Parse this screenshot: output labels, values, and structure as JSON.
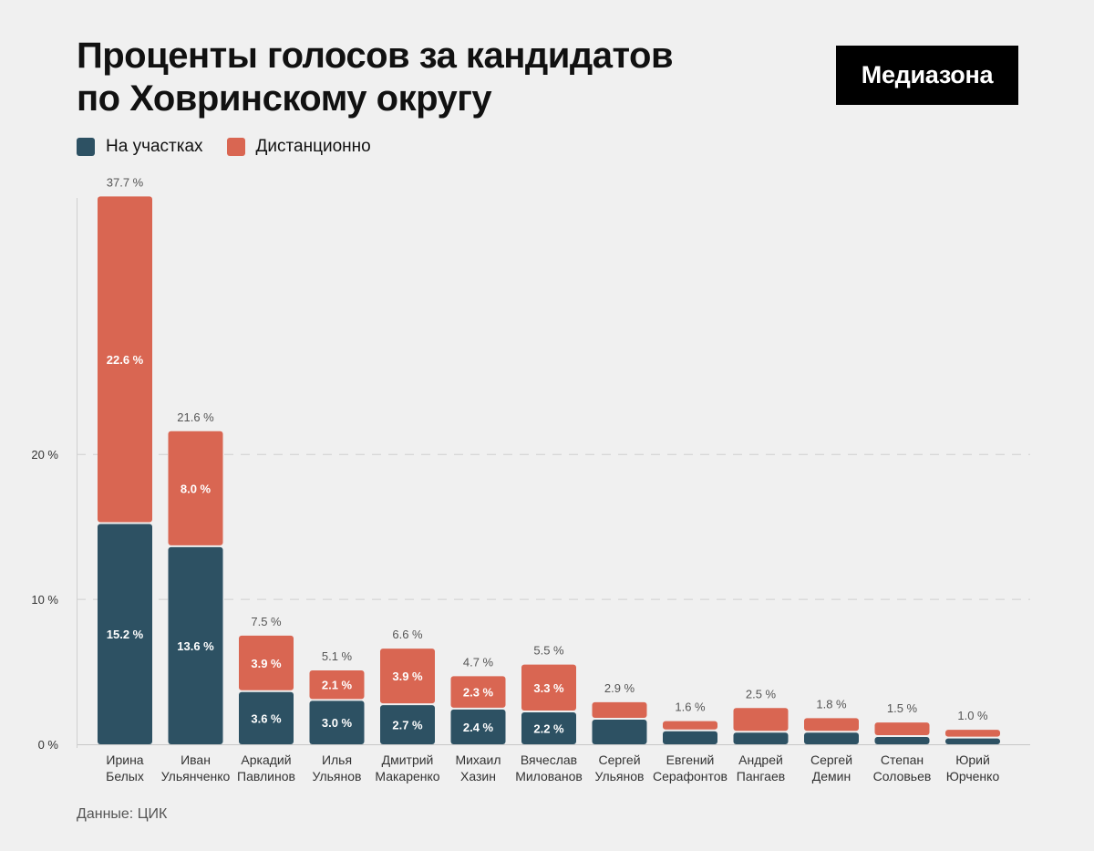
{
  "title": {
    "line1": "Проценты голосов за кандидатов",
    "line2": "по Ховринскому округу"
  },
  "logo": "Медиазона",
  "legend": {
    "items": [
      {
        "label": "На участках",
        "color": "#2d5163"
      },
      {
        "label": "Дистанционно",
        "color": "#d96652"
      }
    ]
  },
  "source": "Данные: ЦИК",
  "chart_data": {
    "type": "bar",
    "stacked": true,
    "title": "Проценты голосов за кандидатов по Ховринскому округу",
    "ylim": [
      0,
      37.7
    ],
    "yticks": [
      {
        "value": 0,
        "label": "0 %"
      },
      {
        "value": 10,
        "label": "10 %"
      },
      {
        "value": 20,
        "label": "20 %"
      }
    ],
    "categories": [
      [
        "Ирина",
        "Белых"
      ],
      [
        "Иван",
        "Ульянченко"
      ],
      [
        "Аркадий",
        "Павлинов"
      ],
      [
        "Илья",
        "Ульянов"
      ],
      [
        "Дмитрий",
        "Макаренко"
      ],
      [
        "Михаил",
        "Хазин"
      ],
      [
        "Вячеслав",
        "Милованов"
      ],
      [
        "Сергей",
        "Ульянов"
      ],
      [
        "Евгений",
        "Серафонтов"
      ],
      [
        "Андрей",
        "Пангаев"
      ],
      [
        "Сергей",
        "Демин"
      ],
      [
        "Степан",
        "Соловьев"
      ],
      [
        "Юрий",
        "Юрченко"
      ]
    ],
    "series": [
      {
        "name": "На участках",
        "color": "#2d5163",
        "values": [
          15.2,
          13.6,
          3.6,
          3.0,
          2.7,
          2.4,
          2.2,
          1.7,
          0.9,
          0.8,
          0.8,
          0.5,
          0.4
        ],
        "labels": [
          "15.2 %",
          "13.6 %",
          "3.6 %",
          "3.0 %",
          "2.7 %",
          "2.4 %",
          "2.2 %",
          null,
          null,
          null,
          null,
          null,
          null
        ]
      },
      {
        "name": "Дистанционно",
        "color": "#d96652",
        "values": [
          22.6,
          8.0,
          3.9,
          2.1,
          3.9,
          2.3,
          3.3,
          1.2,
          0.7,
          1.7,
          1.0,
          1.0,
          0.6
        ],
        "labels": [
          "22.6 %",
          "8.0 %",
          "3.9 %",
          "2.1 %",
          "3.9 %",
          "2.3 %",
          "3.3 %",
          null,
          null,
          null,
          null,
          null,
          null
        ]
      }
    ],
    "totals": [
      37.7,
      21.6,
      7.5,
      5.1,
      6.6,
      4.7,
      5.5,
      2.9,
      1.6,
      2.5,
      1.8,
      1.5,
      1.0
    ],
    "total_labels": [
      "37.7 %",
      "21.6 %",
      "7.5 %",
      "5.1 %",
      "6.6 %",
      "4.7 %",
      "5.5 %",
      "2.9 %",
      "1.6 %",
      "2.5 %",
      "1.8 %",
      "1.5 %",
      "1.0 %"
    ]
  }
}
